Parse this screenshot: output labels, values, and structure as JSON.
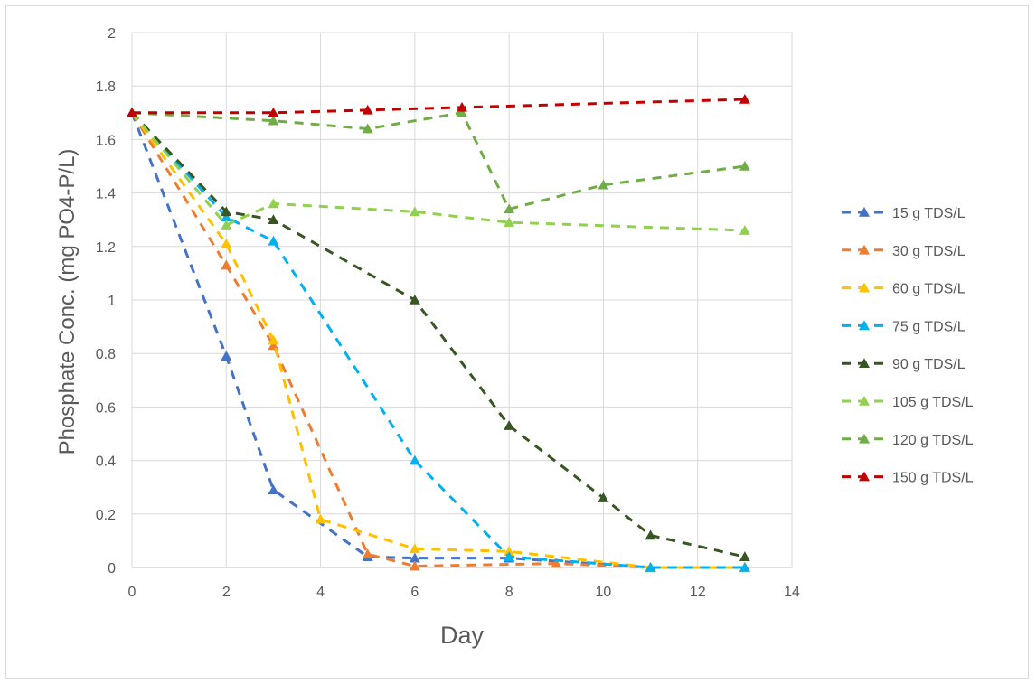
{
  "chart_data": {
    "type": "line",
    "title": "",
    "xlabel": "Day",
    "ylabel": "Phosphate Conc. (mg PO4-P/L)",
    "xlim": [
      0,
      14
    ],
    "ylim": [
      0,
      2
    ],
    "x_ticks": [
      "0",
      "2",
      "4",
      "6",
      "8",
      "10",
      "12",
      "14"
    ],
    "y_ticks": [
      "0",
      "0.2",
      "0.4",
      "0.6",
      "0.8",
      "1",
      "1.2",
      "1.4",
      "1.6",
      "1.8",
      "2"
    ],
    "grid": true,
    "legend_position": "right",
    "line_style": "dashed",
    "marker": "triangle",
    "series": [
      {
        "name": "15 g TDS/L",
        "color": "#4472C4",
        "points": [
          [
            0,
            1.7
          ],
          [
            2,
            0.79
          ],
          [
            3,
            0.29
          ],
          [
            5,
            0.04
          ],
          [
            6,
            0.035
          ],
          [
            8,
            0.035
          ],
          [
            11,
            0.0
          ],
          [
            13,
            0.0
          ]
        ]
      },
      {
        "name": "30 g TDS/L",
        "color": "#ED7D31",
        "points": [
          [
            0,
            1.7
          ],
          [
            2,
            1.13
          ],
          [
            3,
            0.83
          ],
          [
            5,
            0.05
          ],
          [
            6,
            0.005
          ],
          [
            9,
            0.015
          ],
          [
            11,
            0.0
          ],
          [
            13,
            0.0
          ]
        ]
      },
      {
        "name": "60 g TDS/L",
        "color": "#FFC000",
        "points": [
          [
            0,
            1.7
          ],
          [
            2,
            1.21
          ],
          [
            3,
            0.85
          ],
          [
            4,
            0.18
          ],
          [
            6,
            0.07
          ],
          [
            8,
            0.06
          ],
          [
            11,
            0.0
          ],
          [
            13,
            0.0
          ]
        ]
      },
      {
        "name": "75 g TDS/L",
        "color": "#00B0F0",
        "points": [
          [
            0,
            1.7
          ],
          [
            2,
            1.31
          ],
          [
            3,
            1.22
          ],
          [
            6,
            0.4
          ],
          [
            8,
            0.04
          ],
          [
            11,
            0.0
          ],
          [
            13,
            0.0
          ]
        ]
      },
      {
        "name": "90 g TDS/L",
        "color": "#375623",
        "points": [
          [
            0,
            1.7
          ],
          [
            2,
            1.33
          ],
          [
            3,
            1.3
          ],
          [
            6,
            1.0
          ],
          [
            8,
            0.53
          ],
          [
            10,
            0.26
          ],
          [
            11,
            0.12
          ],
          [
            13,
            0.04
          ]
        ]
      },
      {
        "name": "105 g TDS/L",
        "color": "#92D050",
        "points": [
          [
            0,
            1.7
          ],
          [
            2,
            1.28
          ],
          [
            3,
            1.36
          ],
          [
            6,
            1.33
          ],
          [
            8,
            1.29
          ],
          [
            13,
            1.26
          ]
        ]
      },
      {
        "name": "120 g TDS/L",
        "color": "#70AD47",
        "points": [
          [
            0,
            1.7
          ],
          [
            3,
            1.67
          ],
          [
            5,
            1.64
          ],
          [
            7,
            1.7
          ],
          [
            8,
            1.34
          ],
          [
            10,
            1.43
          ],
          [
            13,
            1.5
          ]
        ]
      },
      {
        "name": "150 g TDS/L",
        "color": "#C00000",
        "points": [
          [
            0,
            1.7
          ],
          [
            3,
            1.7
          ],
          [
            5,
            1.71
          ],
          [
            7,
            1.72
          ],
          [
            13,
            1.75
          ]
        ]
      }
    ]
  }
}
